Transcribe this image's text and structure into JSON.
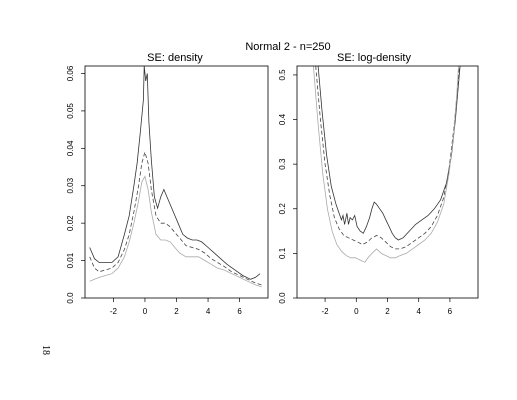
{
  "figure": {
    "main_title": "Normal 2 - n=250",
    "page_number": "18"
  },
  "chart_data": [
    {
      "type": "line",
      "title": "SE: density",
      "xlabel": "",
      "ylabel": "",
      "xlim": [
        -3.8,
        7.8
      ],
      "ylim": [
        0.0,
        0.062
      ],
      "x_ticks": [
        -2,
        0,
        2,
        4,
        6
      ],
      "y_ticks": [
        0.0,
        0.01,
        0.02,
        0.03,
        0.04,
        0.05,
        0.06
      ],
      "y_tick_labels": [
        "0.0",
        "0.01",
        "0.02",
        "0.03",
        "0.04",
        "0.05",
        "0.06"
      ],
      "grid": false,
      "series": [
        {
          "style": "solid",
          "color": "#333333",
          "points": [
            [
              -3.5,
              0.0135
            ],
            [
              -3.2,
              0.0105
            ],
            [
              -2.9,
              0.0095
            ],
            [
              -2.5,
              0.0095
            ],
            [
              -2.1,
              0.0095
            ],
            [
              -1.7,
              0.011
            ],
            [
              -1.3,
              0.017
            ],
            [
              -1.0,
              0.022
            ],
            [
              -0.7,
              0.03
            ],
            [
              -0.5,
              0.036
            ],
            [
              -0.3,
              0.044
            ],
            [
              -0.1,
              0.053
            ],
            [
              -0.05,
              0.062
            ],
            [
              0.05,
              0.058
            ],
            [
              0.15,
              0.06
            ],
            [
              0.25,
              0.047
            ],
            [
              0.4,
              0.037
            ],
            [
              0.6,
              0.027
            ],
            [
              0.8,
              0.024
            ],
            [
              1.0,
              0.027
            ],
            [
              1.2,
              0.029
            ],
            [
              1.4,
              0.027
            ],
            [
              1.6,
              0.025
            ],
            [
              1.8,
              0.023
            ],
            [
              2.1,
              0.02
            ],
            [
              2.4,
              0.017
            ],
            [
              2.7,
              0.016
            ],
            [
              3.0,
              0.0155
            ],
            [
              3.3,
              0.0155
            ],
            [
              3.6,
              0.015
            ],
            [
              4.0,
              0.0135
            ],
            [
              4.4,
              0.012
            ],
            [
              4.8,
              0.0105
            ],
            [
              5.2,
              0.009
            ],
            [
              5.7,
              0.0075
            ],
            [
              6.2,
              0.006
            ],
            [
              6.7,
              0.005
            ],
            [
              7.0,
              0.0055
            ],
            [
              7.3,
              0.0065
            ]
          ]
        },
        {
          "style": "dashed",
          "color": "#444444",
          "points": [
            [
              -3.5,
              0.011
            ],
            [
              -3.2,
              0.008
            ],
            [
              -2.9,
              0.007
            ],
            [
              -2.5,
              0.0075
            ],
            [
              -2.1,
              0.008
            ],
            [
              -1.7,
              0.0095
            ],
            [
              -1.3,
              0.013
            ],
            [
              -1.0,
              0.017
            ],
            [
              -0.7,
              0.023
            ],
            [
              -0.4,
              0.03
            ],
            [
              -0.2,
              0.036
            ],
            [
              0.0,
              0.039
            ],
            [
              0.2,
              0.036
            ],
            [
              0.4,
              0.029
            ],
            [
              0.7,
              0.022
            ],
            [
              1.0,
              0.02
            ],
            [
              1.3,
              0.02
            ],
            [
              1.6,
              0.019
            ],
            [
              1.9,
              0.0175
            ],
            [
              2.2,
              0.016
            ],
            [
              2.6,
              0.014
            ],
            [
              3.0,
              0.0135
            ],
            [
              3.4,
              0.013
            ],
            [
              3.8,
              0.012
            ],
            [
              4.2,
              0.0105
            ],
            [
              4.6,
              0.0095
            ],
            [
              5.0,
              0.0085
            ],
            [
              5.5,
              0.007
            ],
            [
              6.0,
              0.006
            ],
            [
              6.5,
              0.005
            ],
            [
              7.0,
              0.004
            ],
            [
              7.4,
              0.0035
            ]
          ]
        },
        {
          "style": "solid",
          "color": "#aaaaaa",
          "points": [
            [
              -3.5,
              0.0045
            ],
            [
              -3.2,
              0.005
            ],
            [
              -2.9,
              0.0055
            ],
            [
              -2.5,
              0.006
            ],
            [
              -2.1,
              0.0065
            ],
            [
              -1.7,
              0.008
            ],
            [
              -1.3,
              0.011
            ],
            [
              -1.0,
              0.015
            ],
            [
              -0.7,
              0.02
            ],
            [
              -0.4,
              0.026
            ],
            [
              -0.2,
              0.031
            ],
            [
              0.0,
              0.0325
            ],
            [
              0.2,
              0.029
            ],
            [
              0.4,
              0.023
            ],
            [
              0.7,
              0.017
            ],
            [
              1.0,
              0.0155
            ],
            [
              1.3,
              0.0155
            ],
            [
              1.6,
              0.015
            ],
            [
              1.9,
              0.0135
            ],
            [
              2.2,
              0.012
            ],
            [
              2.6,
              0.011
            ],
            [
              3.0,
              0.011
            ],
            [
              3.4,
              0.011
            ],
            [
              3.8,
              0.01
            ],
            [
              4.2,
              0.009
            ],
            [
              4.6,
              0.008
            ],
            [
              5.0,
              0.0075
            ],
            [
              5.5,
              0.0065
            ],
            [
              6.0,
              0.0055
            ],
            [
              6.5,
              0.0045
            ],
            [
              7.0,
              0.0035
            ],
            [
              7.4,
              0.003
            ]
          ]
        }
      ]
    },
    {
      "type": "line",
      "title": "SE: log-density",
      "xlabel": "",
      "ylabel": "",
      "xlim": [
        -3.8,
        7.8
      ],
      "ylim": [
        0.0,
        0.52
      ],
      "x_ticks": [
        -2,
        0,
        2,
        4,
        6
      ],
      "y_ticks": [
        0.0,
        0.1,
        0.2,
        0.3,
        0.4,
        0.5
      ],
      "y_tick_labels": [
        "0.0",
        "0.1",
        "0.2",
        "0.3",
        "0.4",
        "0.5"
      ],
      "grid": false,
      "series": [
        {
          "style": "solid",
          "color": "#333333",
          "points": [
            [
              -2.45,
              0.52
            ],
            [
              -2.2,
              0.42
            ],
            [
              -1.9,
              0.32
            ],
            [
              -1.6,
              0.25
            ],
            [
              -1.3,
              0.21
            ],
            [
              -1.1,
              0.19
            ],
            [
              -0.95,
              0.175
            ],
            [
              -0.85,
              0.185
            ],
            [
              -0.75,
              0.165
            ],
            [
              -0.6,
              0.19
            ],
            [
              -0.5,
              0.165
            ],
            [
              -0.4,
              0.18
            ],
            [
              -0.25,
              0.175
            ],
            [
              -0.1,
              0.185
            ],
            [
              0.05,
              0.16
            ],
            [
              0.25,
              0.15
            ],
            [
              0.45,
              0.145
            ],
            [
              0.65,
              0.16
            ],
            [
              0.85,
              0.18
            ],
            [
              1.0,
              0.2
            ],
            [
              1.15,
              0.215
            ],
            [
              1.3,
              0.21
            ],
            [
              1.5,
              0.2
            ],
            [
              1.7,
              0.19
            ],
            [
              1.9,
              0.175
            ],
            [
              2.1,
              0.16
            ],
            [
              2.3,
              0.145
            ],
            [
              2.5,
              0.135
            ],
            [
              2.7,
              0.13
            ],
            [
              3.0,
              0.135
            ],
            [
              3.4,
              0.15
            ],
            [
              3.8,
              0.165
            ],
            [
              4.2,
              0.175
            ],
            [
              4.6,
              0.185
            ],
            [
              5.0,
              0.2
            ],
            [
              5.4,
              0.22
            ],
            [
              5.8,
              0.26
            ],
            [
              6.1,
              0.32
            ],
            [
              6.35,
              0.4
            ],
            [
              6.55,
              0.48
            ],
            [
              6.65,
              0.52
            ]
          ]
        },
        {
          "style": "dashed",
          "color": "#444444",
          "points": [
            [
              -2.6,
              0.52
            ],
            [
              -2.3,
              0.4
            ],
            [
              -2.0,
              0.3
            ],
            [
              -1.7,
              0.23
            ],
            [
              -1.4,
              0.18
            ],
            [
              -1.1,
              0.155
            ],
            [
              -0.8,
              0.14
            ],
            [
              -0.5,
              0.135
            ],
            [
              -0.2,
              0.13
            ],
            [
              0.1,
              0.125
            ],
            [
              0.4,
              0.12
            ],
            [
              0.7,
              0.125
            ],
            [
              1.0,
              0.135
            ],
            [
              1.3,
              0.14
            ],
            [
              1.6,
              0.135
            ],
            [
              1.9,
              0.125
            ],
            [
              2.2,
              0.115
            ],
            [
              2.5,
              0.11
            ],
            [
              2.8,
              0.11
            ],
            [
              3.2,
              0.115
            ],
            [
              3.6,
              0.125
            ],
            [
              4.0,
              0.135
            ],
            [
              4.4,
              0.145
            ],
            [
              4.8,
              0.16
            ],
            [
              5.2,
              0.185
            ],
            [
              5.6,
              0.225
            ],
            [
              5.95,
              0.29
            ],
            [
              6.25,
              0.38
            ],
            [
              6.5,
              0.47
            ],
            [
              6.6,
              0.52
            ]
          ]
        },
        {
          "style": "solid",
          "color": "#aaaaaa",
          "points": [
            [
              -2.75,
              0.52
            ],
            [
              -2.45,
              0.39
            ],
            [
              -2.15,
              0.28
            ],
            [
              -1.85,
              0.2
            ],
            [
              -1.55,
              0.15
            ],
            [
              -1.25,
              0.12
            ],
            [
              -0.95,
              0.105
            ],
            [
              -0.65,
              0.095
            ],
            [
              -0.35,
              0.09
            ],
            [
              -0.05,
              0.09
            ],
            [
              0.25,
              0.085
            ],
            [
              0.55,
              0.08
            ],
            [
              0.75,
              0.09
            ],
            [
              1.0,
              0.1
            ],
            [
              1.3,
              0.11
            ],
            [
              1.6,
              0.1
            ],
            [
              1.9,
              0.095
            ],
            [
              2.2,
              0.09
            ],
            [
              2.5,
              0.09
            ],
            [
              2.8,
              0.095
            ],
            [
              3.2,
              0.1
            ],
            [
              3.6,
              0.11
            ],
            [
              4.0,
              0.12
            ],
            [
              4.4,
              0.13
            ],
            [
              4.8,
              0.145
            ],
            [
              5.2,
              0.17
            ],
            [
              5.6,
              0.21
            ],
            [
              5.95,
              0.28
            ],
            [
              6.25,
              0.37
            ],
            [
              6.45,
              0.46
            ],
            [
              6.55,
              0.52
            ]
          ]
        }
      ]
    }
  ]
}
